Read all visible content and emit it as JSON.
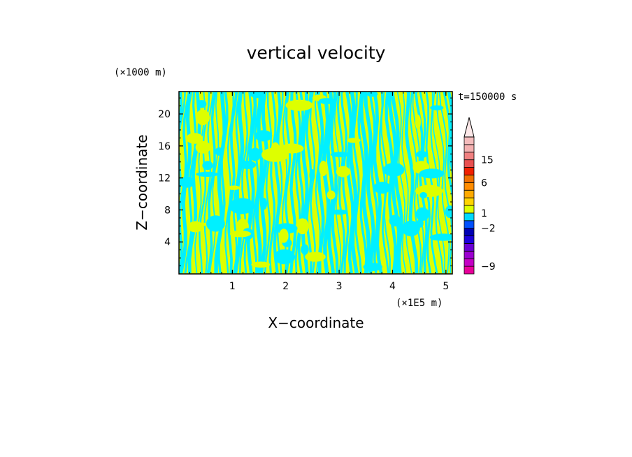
{
  "chart_data": {
    "type": "heatmap",
    "title": "vertical velocity",
    "xlabel": "X−coordinate",
    "ylabel": "Z−coordinate",
    "x_unit": "(×1E5 m)",
    "y_unit": "(×1000 m)",
    "time_label": "t=150000 s",
    "xlim": [
      0,
      5.12
    ],
    "ylim": [
      0,
      22.8
    ],
    "x_ticks": [
      "1",
      "2",
      "3",
      "4",
      "5"
    ],
    "y_ticks": [
      "4",
      "8",
      "12",
      "16",
      "20"
    ],
    "grid": false,
    "field_colors": {
      "negative": "#00f0ff",
      "positive": "#ddff00"
    },
    "colorbar": {
      "tick_labels": [
        "−9",
        "−2",
        "1",
        "6",
        "15"
      ],
      "bands": [
        {
          "color": "#e8009a"
        },
        {
          "color": "#c400c4"
        },
        {
          "color": "#9c00d0"
        },
        {
          "color": "#6a00d4"
        },
        {
          "color": "#1c00dc"
        },
        {
          "color": "#0000b4"
        },
        {
          "color": "#0050ff"
        },
        {
          "color": "#00d8ff"
        },
        {
          "color": "#ddff00"
        },
        {
          "color": "#ffd400"
        },
        {
          "color": "#ffaa00"
        },
        {
          "color": "#ff8c00"
        },
        {
          "color": "#f07000"
        },
        {
          "color": "#f02000"
        },
        {
          "color": "#e85050"
        },
        {
          "color": "#f08080"
        },
        {
          "color": "#f4b0b0"
        },
        {
          "color": "#f4bcbc"
        }
      ],
      "overflow_color": "#fce8e8"
    }
  }
}
